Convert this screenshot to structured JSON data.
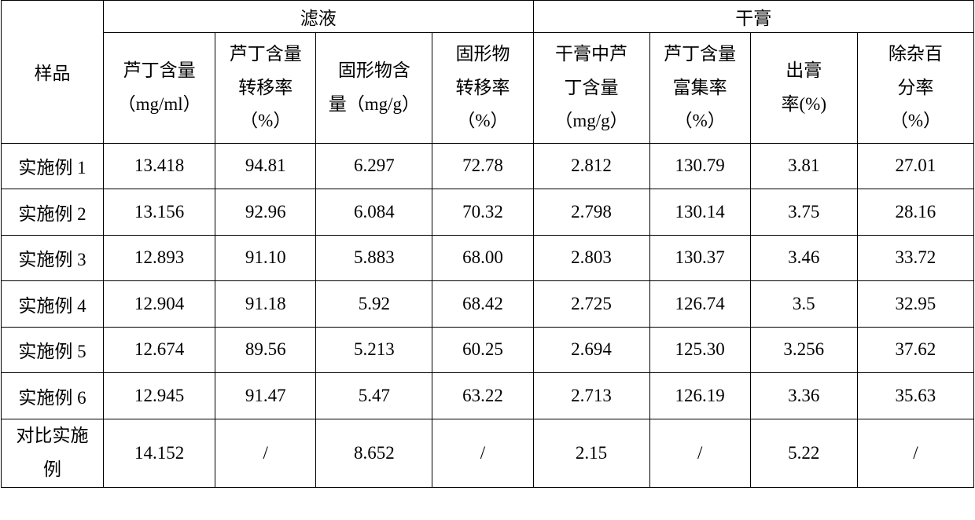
{
  "header": {
    "sample": "样品",
    "group1": "滤液",
    "group2": "干膏",
    "sub": {
      "c1a": "芦丁含量",
      "c1b": "（mg/ml）",
      "c2a": "芦丁含量",
      "c2b": "转移率",
      "c2c": "（%）",
      "c3a": "固形物含",
      "c3b": "量（mg/g）",
      "c4a": "固形物",
      "c4b": "转移率",
      "c4c": "（%）",
      "c5a": "干膏中芦",
      "c5b": "丁含量",
      "c5c": "（mg/g）",
      "c6a": "芦丁含量",
      "c6b": "富集率",
      "c6c": "（%）",
      "c7a": "出膏",
      "c7b": "率(%)",
      "c8a": "除杂百",
      "c8b": "分率",
      "c8c": "（%）"
    }
  },
  "rows": [
    {
      "name": "实施例 1",
      "v": [
        "13.418",
        "94.81",
        "6.297",
        "72.78",
        "2.812",
        "130.79",
        "3.81",
        "27.01"
      ]
    },
    {
      "name": "实施例 2",
      "v": [
        "13.156",
        "92.96",
        "6.084",
        "70.32",
        "2.798",
        "130.14",
        "3.75",
        "28.16"
      ]
    },
    {
      "name": "实施例 3",
      "v": [
        "12.893",
        "91.10",
        "5.883",
        "68.00",
        "2.803",
        "130.37",
        "3.46",
        "33.72"
      ]
    },
    {
      "name": "实施例 4",
      "v": [
        "12.904",
        "91.18",
        "5.92",
        "68.42",
        "2.725",
        "126.74",
        "3.5",
        "32.95"
      ]
    },
    {
      "name": "实施例 5",
      "v": [
        "12.674",
        "89.56",
        "5.213",
        "60.25",
        "2.694",
        "125.30",
        "3.256",
        "37.62"
      ]
    },
    {
      "name": "实施例 6",
      "v": [
        "12.945",
        "91.47",
        "5.47",
        "63.22",
        "2.713",
        "126.19",
        "3.36",
        "35.63"
      ]
    }
  ],
  "last": {
    "name1": "对比实施",
    "name2": "例",
    "v": [
      "14.152",
      "/",
      "8.652",
      "/",
      "2.15",
      "/",
      "5.22",
      "/"
    ]
  }
}
